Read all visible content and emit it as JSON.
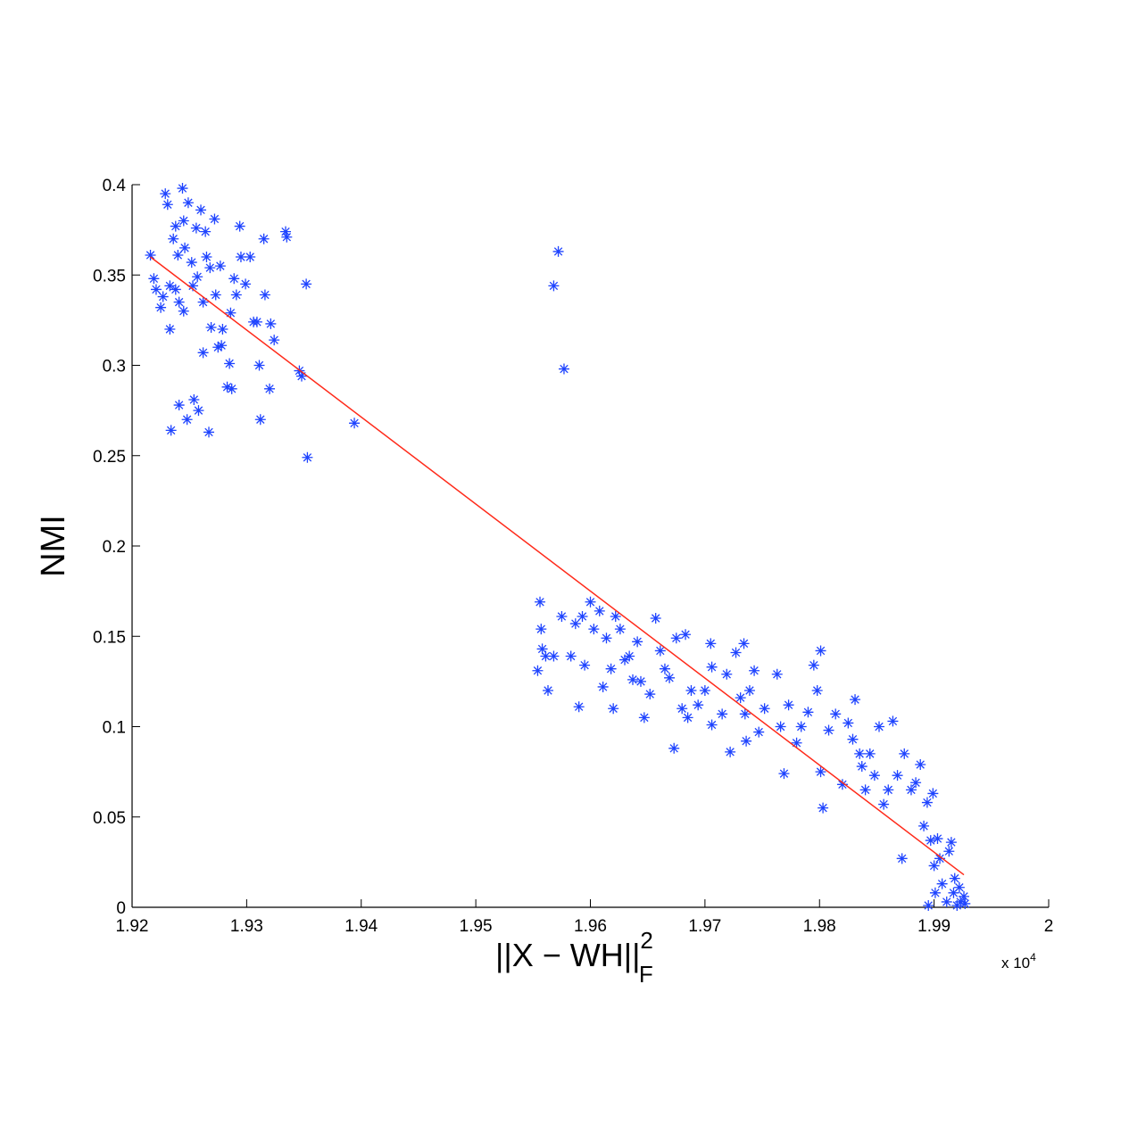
{
  "chart_data": {
    "type": "scatter",
    "xlabel": "||X − WH||",
    "xlabel_sup": "2",
    "xlabel_sub": "F",
    "ylabel": "NMI",
    "x_multiplier": "x 10",
    "x_multiplier_exp": "4",
    "xlim": [
      1.92,
      2
    ],
    "xticks": [
      1.92,
      1.93,
      1.94,
      1.95,
      1.96,
      1.97,
      1.98,
      1.99,
      2
    ],
    "ylim": [
      0,
      0.4
    ],
    "yticks": [
      0,
      0.05,
      0.1,
      0.15,
      0.2,
      0.25,
      0.3,
      0.35,
      0.4
    ],
    "grid": false,
    "series": [
      {
        "type": "scatter",
        "marker": "asterisk",
        "color": "#1f44ff",
        "x": [
          1.9216,
          1.9219,
          1.9221,
          1.9225,
          1.9229,
          1.9231,
          1.9233,
          1.9233,
          1.9234,
          1.9236,
          1.9238,
          1.924,
          1.9241,
          1.9241,
          1.9244,
          1.9245,
          1.9246,
          1.9248,
          1.9249,
          1.9252,
          1.9253,
          1.9254,
          1.9256,
          1.9257,
          1.9258,
          1.926,
          1.9262,
          1.9264,
          1.9265,
          1.9267,
          1.9268,
          1.9269,
          1.9272,
          1.9273,
          1.9275,
          1.9277,
          1.9279,
          1.9283,
          1.9285,
          1.9286,
          1.9287,
          1.9289,
          1.9291,
          1.9294,
          1.9295,
          1.9299,
          1.9303,
          1.9306,
          1.9309,
          1.9311,
          1.9312,
          1.9315,
          1.9316,
          1.932,
          1.9321,
          1.9324,
          1.9334,
          1.9335,
          1.9346,
          1.9348,
          1.9352,
          1.9353,
          1.9394,
          1.9227,
          1.9245,
          1.9262,
          1.9278,
          1.9238,
          1.9568,
          1.9572,
          1.9577,
          1.9554,
          1.9556,
          1.9557,
          1.9558,
          1.9561,
          1.9563,
          1.9568,
          1.9575,
          1.9583,
          1.9587,
          1.959,
          1.9593,
          1.9595,
          1.96,
          1.9603,
          1.9608,
          1.9611,
          1.9614,
          1.9618,
          1.962,
          1.9622,
          1.9626,
          1.963,
          1.9634,
          1.9637,
          1.9641,
          1.9644,
          1.9647,
          1.9652,
          1.9657,
          1.9661,
          1.9665,
          1.9669,
          1.9673,
          1.9675,
          1.968,
          1.9683,
          1.9685,
          1.9688,
          1.9694,
          1.97,
          1.9705,
          1.9706,
          1.9706,
          1.9715,
          1.9719,
          1.9722,
          1.9727,
          1.9731,
          1.9734,
          1.9736,
          1.9739,
          1.9735,
          1.9743,
          1.9747,
          1.9752,
          1.9763,
          1.9766,
          1.9769,
          1.9773,
          1.978,
          1.9784,
          1.979,
          1.9795,
          1.9798,
          1.9801,
          1.9801,
          1.9803,
          1.9808,
          1.9814,
          1.982,
          1.9825,
          1.9829,
          1.9831,
          1.9835,
          1.9837,
          1.984,
          1.9844,
          1.9848,
          1.9852,
          1.9856,
          1.986,
          1.9864,
          1.9868,
          1.9872,
          1.9874,
          1.988,
          1.9884,
          1.9888,
          1.9891,
          1.9894,
          1.9895,
          1.9897,
          1.9899,
          1.99,
          1.9901,
          1.9903,
          1.9905,
          1.9907,
          1.9911,
          1.9913,
          1.9915,
          1.9917,
          1.9918,
          1.992,
          1.9922,
          1.9923,
          1.9926,
          1.9927
        ],
        "values": [
          0.361,
          0.348,
          0.342,
          0.332,
          0.395,
          0.389,
          0.344,
          0.32,
          0.264,
          0.37,
          0.377,
          0.361,
          0.335,
          0.278,
          0.398,
          0.38,
          0.365,
          0.27,
          0.39,
          0.357,
          0.344,
          0.281,
          0.376,
          0.349,
          0.275,
          0.386,
          0.335,
          0.374,
          0.36,
          0.263,
          0.354,
          0.321,
          0.381,
          0.339,
          0.31,
          0.355,
          0.32,
          0.288,
          0.301,
          0.329,
          0.287,
          0.348,
          0.339,
          0.377,
          0.36,
          0.345,
          0.36,
          0.324,
          0.324,
          0.3,
          0.27,
          0.37,
          0.339,
          0.287,
          0.323,
          0.314,
          0.374,
          0.371,
          0.297,
          0.294,
          0.345,
          0.249,
          0.268,
          0.338,
          0.33,
          0.307,
          0.311,
          0.342,
          0.344,
          0.363,
          0.298,
          0.131,
          0.169,
          0.154,
          0.143,
          0.139,
          0.12,
          0.139,
          0.161,
          0.139,
          0.157,
          0.111,
          0.161,
          0.134,
          0.169,
          0.154,
          0.164,
          0.122,
          0.149,
          0.132,
          0.11,
          0.161,
          0.154,
          0.137,
          0.139,
          0.126,
          0.147,
          0.125,
          0.105,
          0.118,
          0.16,
          0.142,
          0.132,
          0.127,
          0.088,
          0.149,
          0.11,
          0.151,
          0.105,
          0.12,
          0.112,
          0.12,
          0.146,
          0.133,
          0.101,
          0.107,
          0.129,
          0.086,
          0.141,
          0.116,
          0.146,
          0.092,
          0.12,
          0.107,
          0.131,
          0.097,
          0.11,
          0.129,
          0.1,
          0.074,
          0.112,
          0.091,
          0.1,
          0.108,
          0.134,
          0.12,
          0.142,
          0.075,
          0.055,
          0.098,
          0.107,
          0.068,
          0.102,
          0.093,
          0.115,
          0.085,
          0.078,
          0.065,
          0.085,
          0.073,
          0.1,
          0.057,
          0.065,
          0.103,
          0.073,
          0.027,
          0.085,
          0.065,
          0.069,
          0.079,
          0.045,
          0.058,
          0.001,
          0.037,
          0.063,
          0.023,
          0.008,
          0.038,
          0.027,
          0.013,
          0.003,
          0.031,
          0.036,
          0.008,
          0.016,
          0.001,
          0.011,
          0.003,
          0.006,
          0.002
        ]
      },
      {
        "type": "line",
        "color": "#ff2a1a",
        "x": [
          1.9216,
          1.9926
        ],
        "values": [
          0.36,
          0.018
        ]
      }
    ]
  }
}
